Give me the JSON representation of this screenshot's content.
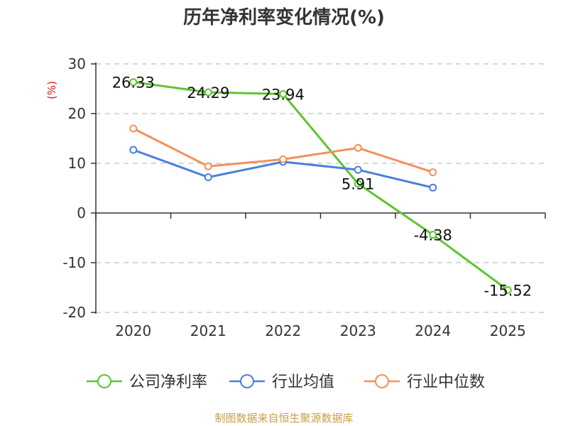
{
  "chart_data": {
    "type": "line",
    "title": "历年净利率变化情况(%)",
    "ylabel": "(%)",
    "xlabel": "",
    "categories": [
      "2020",
      "2021",
      "2022",
      "2023",
      "2024",
      "2025"
    ],
    "ylim": [
      -20,
      30
    ],
    "yticks": [
      30,
      20,
      10,
      0,
      -10,
      -20
    ],
    "grid": true,
    "legend_position": "bottom",
    "series": [
      {
        "name": "公司净利率",
        "color": "#5cc52e",
        "values": [
          26.33,
          24.29,
          23.94,
          5.91,
          -4.38,
          -15.52
        ],
        "labels": [
          "26.33",
          "24.29",
          "23.94",
          "5.91",
          "-4.38",
          "-15.52"
        ]
      },
      {
        "name": "行业均值",
        "color": "#4a7fdc",
        "values": [
          12.7,
          7.2,
          10.3,
          8.7,
          5.1,
          null
        ]
      },
      {
        "name": "行业中位数",
        "color": "#f3905a",
        "values": [
          17.0,
          9.4,
          10.8,
          13.1,
          8.2,
          null
        ]
      }
    ]
  },
  "colors": {
    "unit_label": "#dd1111",
    "axis": "#333333",
    "grid": "#cccccc"
  },
  "footer": {
    "source": "制图数据来自恒生聚源数据库"
  }
}
